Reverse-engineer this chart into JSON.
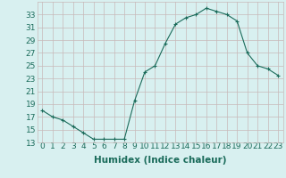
{
  "x": [
    0,
    1,
    2,
    3,
    4,
    5,
    6,
    7,
    8,
    9,
    10,
    11,
    12,
    13,
    14,
    15,
    16,
    17,
    18,
    19,
    20,
    21,
    22,
    23
  ],
  "y": [
    18,
    17,
    16.5,
    15.5,
    14.5,
    13.5,
    13.5,
    13.5,
    13.5,
    19.5,
    24,
    25,
    28.5,
    31.5,
    32.5,
    33,
    34,
    33.5,
    33,
    32,
    27,
    25,
    24.5,
    23.5
  ],
  "xlabel": "Humidex (Indice chaleur)",
  "xlim": [
    -0.5,
    23.5
  ],
  "ylim": [
    13,
    35
  ],
  "yticks": [
    13,
    15,
    17,
    19,
    21,
    23,
    25,
    27,
    29,
    31,
    33
  ],
  "xticks": [
    0,
    1,
    2,
    3,
    4,
    5,
    6,
    7,
    8,
    9,
    10,
    11,
    12,
    13,
    14,
    15,
    16,
    17,
    18,
    19,
    20,
    21,
    22,
    23
  ],
  "line_color": "#1a6b5a",
  "marker": "+",
  "bg_color": "#d8f0f0",
  "grid_color": "#c8b8b8",
  "xlabel_fontsize": 7.5,
  "tick_fontsize": 6.5
}
